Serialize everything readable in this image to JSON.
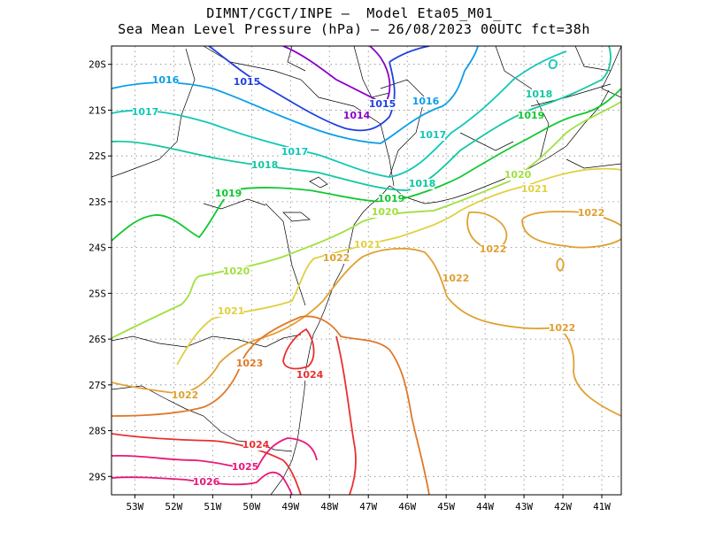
{
  "header": {
    "line1": "DIMNT/CGCT/INPE –  Model Eta05_M01_",
    "line2": "Sea Mean Level Pressure (hPa) – 26/08/2023 00UTC fct=38h"
  },
  "map": {
    "lon_range": [
      -53.6,
      -40.5
    ],
    "lat_range": [
      -29.4,
      -19.6
    ],
    "lon_ticks": [
      "53W",
      "52W",
      "51W",
      "50W",
      "49W",
      "48W",
      "47W",
      "46W",
      "45W",
      "44W",
      "43W",
      "42W",
      "41W"
    ],
    "lat_ticks": [
      "20S",
      "21S",
      "22S",
      "23S",
      "24S",
      "25S",
      "26S",
      "27S",
      "28S",
      "29S"
    ],
    "grid": true
  },
  "contour_labels": [
    {
      "text": "1014",
      "color": "#8a00c8"
    },
    {
      "text": "1015",
      "color": "#2040e0"
    },
    {
      "text": "1015",
      "color": "#2040e0"
    },
    {
      "text": "1016",
      "color": "#0a9ee8"
    },
    {
      "text": "1016",
      "color": "#0a9ee8"
    },
    {
      "text": "1017",
      "color": "#10c8b8"
    },
    {
      "text": "1017",
      "color": "#10c8b8"
    },
    {
      "text": "1017",
      "color": "#10c8b8"
    },
    {
      "text": "1018",
      "color": "#10c8a0"
    },
    {
      "text": "1018",
      "color": "#10c8a0"
    },
    {
      "text": "1018",
      "color": "#10c8a0"
    },
    {
      "text": "1019",
      "color": "#10c830"
    },
    {
      "text": "1019",
      "color": "#10c830"
    },
    {
      "text": "1019",
      "color": "#10c830"
    },
    {
      "text": "1020",
      "color": "#a0e040"
    },
    {
      "text": "1020",
      "color": "#a0e040"
    },
    {
      "text": "1020",
      "color": "#a0e040"
    },
    {
      "text": "1021",
      "color": "#e0d040"
    },
    {
      "text": "1021",
      "color": "#e0d040"
    },
    {
      "text": "1021",
      "color": "#e0d040"
    },
    {
      "text": "1022",
      "color": "#e0a030"
    },
    {
      "text": "1022",
      "color": "#e0a030"
    },
    {
      "text": "1022",
      "color": "#e0a030"
    },
    {
      "text": "1022",
      "color": "#e0a030"
    },
    {
      "text": "1022",
      "color": "#e0a030"
    },
    {
      "text": "1022",
      "color": "#e0a030"
    },
    {
      "text": "1023",
      "color": "#e07828"
    },
    {
      "text": "1024",
      "color": "#e83030"
    },
    {
      "text": "1024",
      "color": "#e83030"
    },
    {
      "text": "1025",
      "color": "#e81878"
    },
    {
      "text": "1026",
      "color": "#e81878"
    }
  ]
}
